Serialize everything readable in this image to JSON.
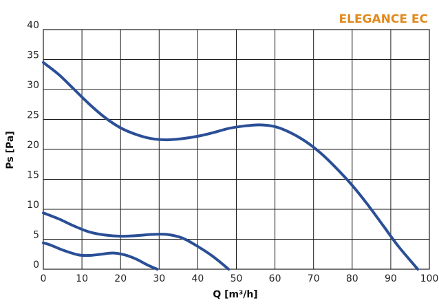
{
  "chart_data": {
    "type": "line",
    "title": "ELEGANCE EC",
    "xlabel": "Q [m³/h]",
    "ylabel": "Ps [Pa]",
    "xlim": [
      0,
      100
    ],
    "ylim": [
      0,
      40
    ],
    "x_ticks": [
      0,
      10,
      20,
      30,
      40,
      50,
      60,
      70,
      80,
      90,
      100
    ],
    "y_ticks": [
      0,
      5,
      10,
      15,
      20,
      25,
      30,
      35,
      40
    ],
    "grid": true,
    "legend": "none",
    "line_color": "#2a4f96",
    "title_color": "#e08a1e",
    "series": [
      {
        "points": [
          [
            0,
            34.5
          ],
          [
            4,
            32.5
          ],
          [
            8,
            30.0
          ],
          [
            12,
            27.5
          ],
          [
            16,
            25.3
          ],
          [
            20,
            23.6
          ],
          [
            24,
            22.5
          ],
          [
            28,
            21.8
          ],
          [
            32,
            21.6
          ],
          [
            36,
            21.8
          ],
          [
            40,
            22.2
          ],
          [
            44,
            22.8
          ],
          [
            48,
            23.5
          ],
          [
            52,
            23.9
          ],
          [
            56,
            24.1
          ],
          [
            60,
            23.8
          ],
          [
            64,
            22.8
          ],
          [
            68,
            21.3
          ],
          [
            72,
            19.3
          ],
          [
            76,
            16.8
          ],
          [
            80,
            14.0
          ],
          [
            84,
            10.8
          ],
          [
            88,
            7.3
          ],
          [
            92,
            3.8
          ],
          [
            97,
            0
          ]
        ]
      },
      {
        "points": [
          [
            0,
            9.4
          ],
          [
            4,
            8.4
          ],
          [
            8,
            7.2
          ],
          [
            12,
            6.2
          ],
          [
            16,
            5.7
          ],
          [
            20,
            5.5
          ],
          [
            24,
            5.6
          ],
          [
            28,
            5.8
          ],
          [
            32,
            5.8
          ],
          [
            36,
            5.2
          ],
          [
            40,
            3.8
          ],
          [
            44,
            2.1
          ],
          [
            48,
            0
          ]
        ]
      },
      {
        "points": [
          [
            0,
            4.4
          ],
          [
            2,
            4.0
          ],
          [
            5,
            3.2
          ],
          [
            9,
            2.4
          ],
          [
            12,
            2.3
          ],
          [
            15,
            2.5
          ],
          [
            18,
            2.7
          ],
          [
            21,
            2.4
          ],
          [
            24,
            1.7
          ],
          [
            27,
            0.7
          ],
          [
            29.5,
            0
          ]
        ]
      }
    ]
  }
}
